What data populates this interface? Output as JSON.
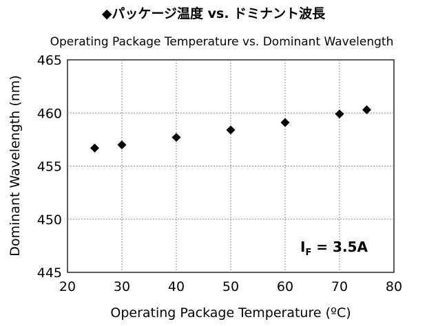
{
  "chart_data": {
    "type": "scatter",
    "title": "◆パッケージ温度 vs. ドミナント波長",
    "subtitle": "Operating Package Temperature vs. Dominant Wavelength",
    "xlabel": "Operating Package Temperature (ºC)",
    "ylabel": "Dominant Wavelength (nm)",
    "xlim": [
      20,
      80
    ],
    "ylim": [
      445,
      465
    ],
    "xticks": [
      20,
      30,
      40,
      50,
      60,
      70,
      80
    ],
    "yticks": [
      445,
      450,
      455,
      460,
      465
    ],
    "grid": true,
    "marker": "diamond",
    "marker_color": "#000000",
    "annotation": {
      "main": "I",
      "sub": "F",
      "rest": " = 3.5A"
    },
    "series": [
      {
        "x": [
          25,
          30,
          40,
          50,
          60,
          70,
          75
        ],
        "y": [
          456.7,
          457.0,
          457.7,
          458.4,
          459.1,
          459.9,
          460.3
        ]
      }
    ]
  }
}
